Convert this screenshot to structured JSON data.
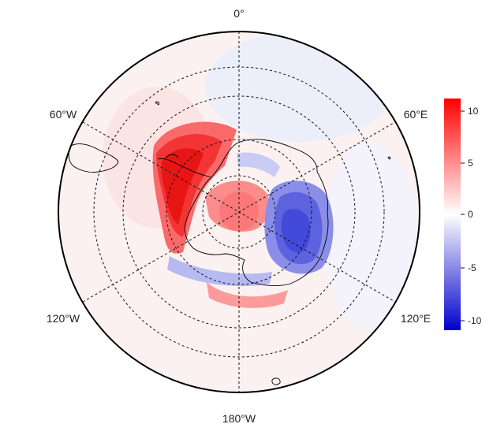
{
  "map": {
    "projection": "south-polar-stereographic",
    "center_pole": "South Pole",
    "longitude_labels": {
      "top": "0°",
      "upper_left": "60°W",
      "upper_right": "60°E",
      "lower_left": "120°W",
      "lower_right": "120°E",
      "bottom": "180°W"
    },
    "graticule": "dashed",
    "coastlines": "black"
  },
  "colorbar": {
    "ticks": [
      "10",
      "5",
      "0",
      "-5",
      "-10"
    ],
    "range": [
      -11,
      11
    ],
    "colors": {
      "high": "#ff0000",
      "mid": "#ffffff",
      "low": "#0000cc"
    }
  }
}
